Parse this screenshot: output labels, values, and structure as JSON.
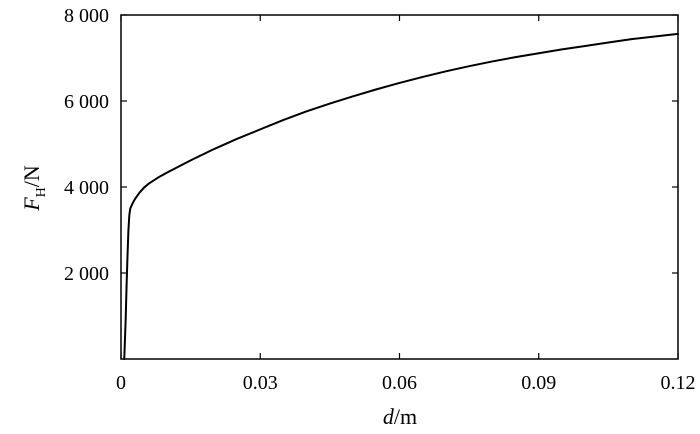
{
  "chart_data": {
    "type": "line",
    "xlabel": {
      "var": "d",
      "unit": "/m"
    },
    "ylabel": {
      "var": "F",
      "sub": "H",
      "unit": "/N"
    },
    "xlim": [
      0,
      0.12
    ],
    "ylim": [
      0,
      8000
    ],
    "xticks": [
      {
        "value": 0,
        "label": "0"
      },
      {
        "value": 0.03,
        "label": "0.03"
      },
      {
        "value": 0.06,
        "label": "0.06"
      },
      {
        "value": 0.09,
        "label": "0.09"
      },
      {
        "value": 0.12,
        "label": "0.12"
      }
    ],
    "yticks": [
      {
        "value": 2000,
        "label": "2 000"
      },
      {
        "value": 4000,
        "label": "4 000"
      },
      {
        "value": 6000,
        "label": "6 000"
      },
      {
        "value": 8000,
        "label": "8 000"
      }
    ],
    "grid": false,
    "series": [
      {
        "color": "#000000",
        "x": [
          0.0007,
          0.001,
          0.0012,
          0.0014,
          0.0016,
          0.0018,
          0.002,
          0.0025,
          0.003,
          0.004,
          0.005,
          0.006,
          0.008,
          0.01,
          0.015,
          0.02,
          0.025,
          0.03,
          0.035,
          0.04,
          0.045,
          0.05,
          0.055,
          0.06,
          0.065,
          0.07,
          0.075,
          0.08,
          0.085,
          0.09,
          0.095,
          0.1,
          0.105,
          0.11,
          0.115,
          0.12
        ],
        "y": [
          0,
          900,
          1700,
          2400,
          3000,
          3350,
          3500,
          3620,
          3720,
          3870,
          3990,
          4080,
          4220,
          4340,
          4620,
          4880,
          5120,
          5340,
          5560,
          5760,
          5940,
          6110,
          6270,
          6420,
          6560,
          6690,
          6810,
          6920,
          7020,
          7110,
          7200,
          7280,
          7360,
          7440,
          7500,
          7560
        ]
      }
    ]
  }
}
